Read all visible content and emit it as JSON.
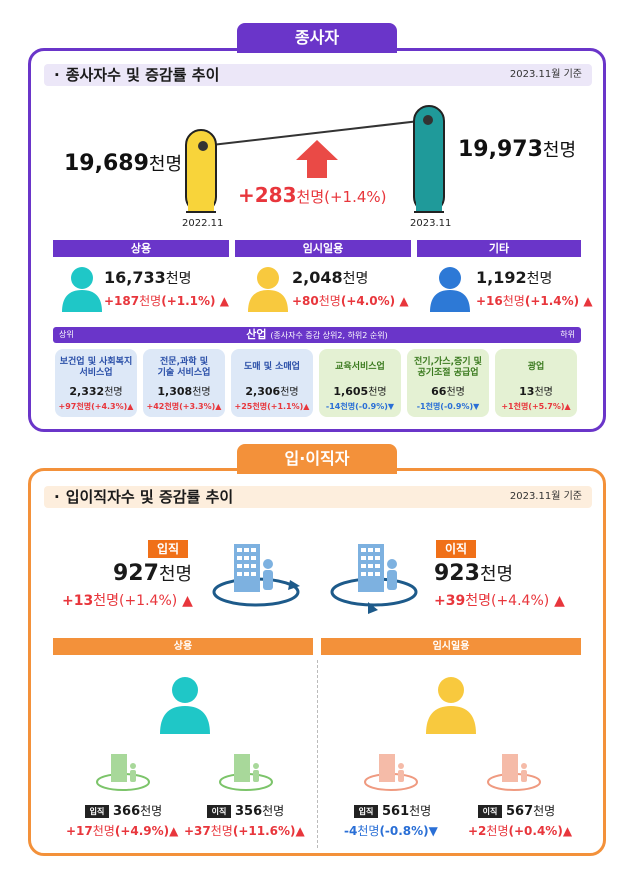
{
  "employees": {
    "tab": "종사자",
    "title": "종사자수 및 증감률 추이",
    "date": "2023.11월 기준",
    "prev": {
      "value": "19,689",
      "unit": "천명",
      "period": "2022.11"
    },
    "curr": {
      "value": "19,973",
      "unit": "천명",
      "period": "2023.11"
    },
    "change": {
      "value": "+283",
      "unit": "천명",
      "pct": "(+1.4%)"
    },
    "categories": [
      {
        "label": "상용",
        "value": "16,733",
        "unit": "천명",
        "inc": "+187",
        "inc_unit": "천명",
        "pct": "(+1.1%)"
      },
      {
        "label": "임시일용",
        "value": "2,048",
        "unit": "천명",
        "inc": "+80",
        "inc_unit": "천명",
        "pct": "(+4.0%)"
      },
      {
        "label": "기타",
        "value": "1,192",
        "unit": "천명",
        "inc": "+16",
        "inc_unit": "천명",
        "pct": "(+1.4%)"
      }
    ],
    "industry": {
      "title": "산업",
      "subtitle": "(종사자수 증감 상위2, 하위2 순위)",
      "low": "하위",
      "high": "상위",
      "cards": [
        {
          "name1": "보건업 및 사회복지",
          "name2": "서비스업",
          "value": "2,332",
          "unit": "천명",
          "inc": "+97천명(+4.3%)"
        },
        {
          "name1": "전문,과학 및",
          "name2": "기술 서비스업",
          "value": "1,308",
          "unit": "천명",
          "inc": "+42천명(+3.3%)"
        },
        {
          "name1": "도매 및 소매업",
          "name2": "",
          "value": "2,306",
          "unit": "천명",
          "inc": "+25천명(+1.1%)"
        },
        {
          "name1": "교육서비스업",
          "name2": "",
          "value": "1,605",
          "unit": "천명",
          "inc": "-14천명(-0.9%)"
        },
        {
          "name1": "전기,가스,증기 및",
          "name2": "공기조절 공급업",
          "value": "66",
          "unit": "천명",
          "inc": "-1천명(-0.9%)"
        },
        {
          "name1": "광업",
          "name2": "",
          "value": "13",
          "unit": "천명",
          "inc": "+1천명(+5.7%)"
        }
      ]
    }
  },
  "turnover": {
    "tab": "입·이직자",
    "title": "입이직자수 및 증감률 추이",
    "date": "2023.11월 기준",
    "hire": {
      "badge": "입직",
      "value": "927",
      "unit": "천명",
      "inc": "+13",
      "inc_unit": "천명",
      "pct": "(+1.4%)"
    },
    "sep": {
      "badge": "이직",
      "value": "923",
      "unit": "천명",
      "inc": "+39",
      "inc_unit": "천명",
      "pct": "(+4.4%)"
    },
    "regular": {
      "label": "상용",
      "hire": {
        "badge": "입직",
        "value": "366",
        "unit": "천명",
        "inc": "+17",
        "inc_unit": "천명",
        "pct": "(+4.9%)"
      },
      "sep": {
        "badge": "이직",
        "value": "356",
        "unit": "천명",
        "inc": "+37",
        "inc_unit": "천명",
        "pct": "(+11.6%)"
      }
    },
    "temp": {
      "label": "임시일용",
      "hire": {
        "badge": "입직",
        "value": "561",
        "unit": "천명",
        "inc": "-4",
        "inc_unit": "천명",
        "pct": "(-0.8%)"
      },
      "sep": {
        "badge": "이직",
        "value": "567",
        "unit": "천명",
        "inc": "+2",
        "inc_unit": "천명",
        "pct": "(+0.4%)"
      }
    }
  },
  "colors": {
    "purple": "#6a35c9",
    "orange": "#f3913a",
    "red": "#e8363c",
    "blue": "#2a6fd6",
    "teal": "#1fc7c7",
    "yellow": "#f8c93e"
  }
}
